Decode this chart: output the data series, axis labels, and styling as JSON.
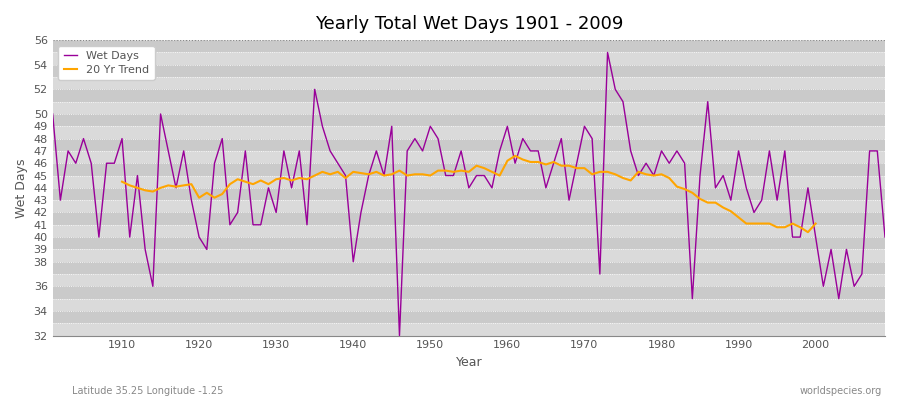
{
  "title": "Yearly Total Wet Days 1901 - 2009",
  "xlabel": "Year",
  "ylabel": "Wet Days",
  "subtitle": "Latitude 35.25 Longitude -1.25",
  "watermark": "worldspecies.org",
  "wet_days_color": "#990099",
  "trend_color": "#FFA500",
  "background_color": "#FFFFFF",
  "plot_bg_color": "#E0E0E0",
  "band_color_light": "#DCDCDC",
  "band_color_dark": "#C8C8C8",
  "ylim": [
    32,
    56
  ],
  "xlim": [
    1901,
    2009
  ],
  "years": [
    1901,
    1902,
    1903,
    1904,
    1905,
    1906,
    1907,
    1908,
    1909,
    1910,
    1911,
    1912,
    1913,
    1914,
    1915,
    1916,
    1917,
    1918,
    1919,
    1920,
    1921,
    1922,
    1923,
    1924,
    1925,
    1926,
    1927,
    1928,
    1929,
    1930,
    1931,
    1932,
    1933,
    1934,
    1935,
    1936,
    1937,
    1938,
    1939,
    1940,
    1941,
    1942,
    1943,
    1944,
    1945,
    1946,
    1947,
    1948,
    1949,
    1950,
    1951,
    1952,
    1953,
    1954,
    1955,
    1956,
    1957,
    1958,
    1959,
    1960,
    1961,
    1962,
    1963,
    1964,
    1965,
    1966,
    1967,
    1968,
    1969,
    1970,
    1971,
    1972,
    1973,
    1974,
    1975,
    1976,
    1977,
    1978,
    1979,
    1980,
    1981,
    1982,
    1983,
    1984,
    1985,
    1986,
    1987,
    1988,
    1989,
    1990,
    1991,
    1992,
    1993,
    1994,
    1995,
    1996,
    1997,
    1998,
    1999,
    2000,
    2001,
    2002,
    2003,
    2004,
    2005,
    2006,
    2007,
    2008,
    2009
  ],
  "wet_days": [
    50,
    43,
    47,
    46,
    48,
    46,
    40,
    46,
    46,
    48,
    40,
    45,
    39,
    36,
    50,
    47,
    44,
    47,
    43,
    40,
    39,
    46,
    48,
    41,
    42,
    47,
    41,
    41,
    44,
    42,
    47,
    44,
    47,
    41,
    52,
    49,
    47,
    46,
    45,
    38,
    42,
    45,
    47,
    45,
    49,
    32,
    47,
    48,
    47,
    49,
    48,
    45,
    45,
    47,
    44,
    45,
    45,
    44,
    47,
    49,
    46,
    48,
    47,
    47,
    44,
    46,
    48,
    43,
    46,
    49,
    48,
    37,
    55,
    52,
    51,
    47,
    45,
    46,
    45,
    47,
    46,
    47,
    46,
    35,
    45,
    51,
    44,
    45,
    43,
    47,
    44,
    42,
    43,
    47,
    43,
    47,
    40,
    40,
    44,
    40,
    36,
    39,
    35,
    39,
    36,
    37,
    47,
    47,
    40
  ],
  "trend_years": [
    1910,
    1911,
    1912,
    1913,
    1914,
    1915,
    1916,
    1917,
    1918,
    1919,
    1920,
    1921,
    1922,
    1923,
    1924,
    1925,
    1926,
    1927,
    1928,
    1929,
    1930,
    1931,
    1932,
    1933,
    1934,
    1935,
    1936,
    1937,
    1938,
    1939,
    1940,
    1941,
    1942,
    1943,
    1944,
    1945,
    1946,
    1947,
    1948,
    1949,
    1950,
    1951,
    1952,
    1953,
    1954,
    1955,
    1956,
    1957,
    1958,
    1959,
    1960,
    1961,
    1962,
    1963,
    1964,
    1965,
    1966,
    1967,
    1968,
    1969,
    1970,
    1971,
    1972,
    1973,
    1974,
    1975,
    1976,
    1977,
    1978,
    1979,
    1980,
    1981,
    1982,
    1983,
    1984,
    1985,
    1986,
    1987,
    1988,
    1989,
    1990,
    1991,
    1992,
    1993,
    1994,
    1995,
    1996,
    1997,
    1998,
    1999,
    2000
  ],
  "trend_values": [
    44.5,
    44.2,
    44.0,
    43.8,
    43.7,
    44.0,
    44.2,
    44.1,
    44.2,
    44.3,
    43.2,
    43.6,
    43.2,
    43.5,
    44.3,
    44.7,
    44.5,
    44.3,
    44.6,
    44.3,
    44.7,
    44.8,
    44.6,
    44.8,
    44.7,
    45.0,
    45.3,
    45.1,
    45.3,
    44.8,
    45.3,
    45.2,
    45.1,
    45.3,
    45.0,
    45.1,
    45.4,
    45.0,
    45.1,
    45.1,
    45.0,
    45.4,
    45.4,
    45.3,
    45.4,
    45.3,
    45.8,
    45.6,
    45.3,
    45.0,
    46.2,
    46.6,
    46.3,
    46.1,
    46.1,
    45.9,
    46.1,
    45.8,
    45.8,
    45.6,
    45.6,
    45.1,
    45.3,
    45.3,
    45.1,
    44.8,
    44.6,
    45.3,
    45.1,
    45.0,
    45.1,
    44.8,
    44.1,
    43.9,
    43.6,
    43.1,
    42.8,
    42.8,
    42.4,
    42.1,
    41.6,
    41.1,
    41.1,
    41.1,
    41.1,
    40.8,
    40.8,
    41.1,
    40.8,
    40.4,
    41.1
  ],
  "ytick_positions": [
    32,
    34,
    36,
    38,
    39,
    40,
    41,
    42,
    43,
    44,
    45,
    46,
    47,
    48,
    49,
    50,
    52,
    54,
    56
  ],
  "xtick_positions": [
    1910,
    1920,
    1930,
    1940,
    1950,
    1960,
    1970,
    1980,
    1990,
    2000
  ]
}
